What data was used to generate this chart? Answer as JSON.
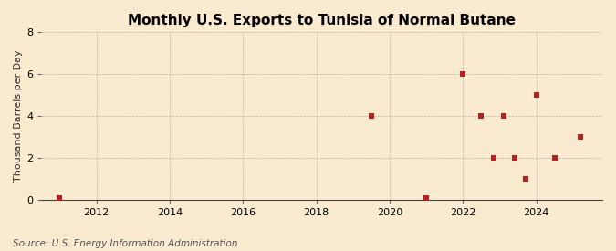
{
  "title": "Monthly U.S. Exports to Tunisia of Normal Butane",
  "ylabel": "Thousand Barrels per Day",
  "source": "Source: U.S. Energy Information Administration",
  "background_color": "#faebd0",
  "plot_background_color": "#faebd0",
  "marker_color": "#b22222",
  "marker_size": 4,
  "xlim": [
    2010.5,
    2025.8
  ],
  "ylim": [
    0,
    8
  ],
  "yticks": [
    0,
    2,
    4,
    6,
    8
  ],
  "xticks": [
    2012,
    2014,
    2016,
    2018,
    2020,
    2022,
    2024
  ],
  "data_x": [
    2011.0,
    2019.5,
    2021.0,
    2022.0,
    2022.5,
    2022.85,
    2023.1,
    2023.4,
    2023.7,
    2024.0,
    2024.5,
    2025.2
  ],
  "data_y": [
    0.07,
    4.0,
    0.07,
    6.0,
    4.0,
    2.0,
    4.0,
    2.0,
    1.0,
    5.0,
    2.0,
    3.0
  ],
  "title_fontsize": 11,
  "axis_label_fontsize": 8,
  "tick_fontsize": 8,
  "source_fontsize": 7.5
}
